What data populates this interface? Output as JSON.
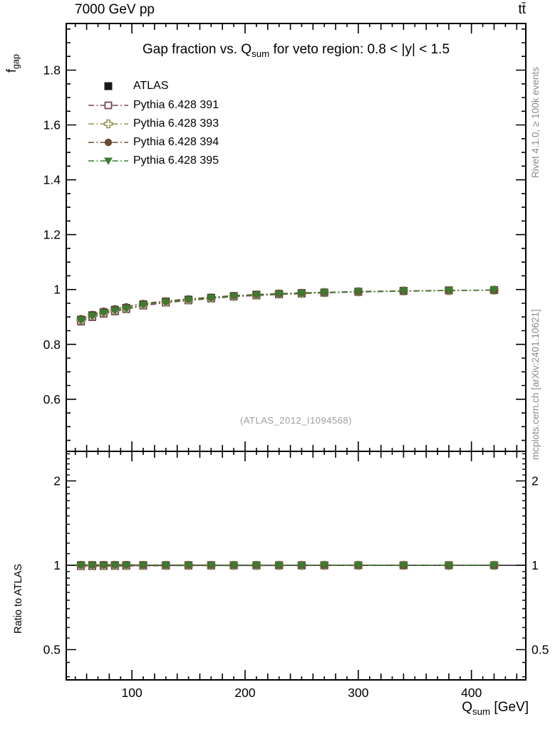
{
  "header": {
    "beam_label": "7000 GeV pp",
    "process_label": "tt̄"
  },
  "side_notes": {
    "right_top": "Rivet 4.1.0, ≥ 100k events",
    "right_bottom": "mcplots.cern.ch [arXiv:2401.10621]"
  },
  "watermark": "(ATLAS_2012_I1094568)",
  "chart_data": {
    "type": "scatter",
    "title": {
      "pre": "Gap fraction vs. Q",
      "sub": "sum",
      "post": " for veto region: 0.8 < |y| < 1.5"
    },
    "xlabel": {
      "pre": "Q",
      "sub": "sum",
      "post": " [GeV]"
    },
    "ylabel": {
      "pre": "f",
      "sub": "gap"
    },
    "ratio_label": "Ratio to ATLAS",
    "legend_position": "top-left",
    "grid": false,
    "x_axis": {
      "lim": [
        42,
        448
      ],
      "major_ticks": [
        100,
        200,
        300,
        400
      ],
      "minor_step": 10
    },
    "y_axis_main": {
      "scale": "linear",
      "lim": [
        0.41,
        1.97
      ],
      "major_ticks": [
        0.6,
        0.8,
        1,
        1.2,
        1.4,
        1.6,
        1.8
      ],
      "minor_step": 0.05
    },
    "y_axis_ratio": {
      "scale": "log",
      "lim": [
        0.39,
        2.55
      ],
      "major_ticks": [
        0.5,
        1,
        2
      ],
      "minor_ticks": [
        0.4,
        0.45,
        0.55,
        0.6,
        0.65,
        0.7,
        0.75,
        0.8,
        0.85,
        0.9,
        0.95,
        1.1,
        1.2,
        1.3,
        1.4,
        1.5,
        1.6,
        1.7,
        1.8,
        1.9,
        2.1,
        2.2,
        2.3,
        2.4,
        2.5
      ]
    },
    "x": [
      55,
      65,
      75,
      85,
      95,
      110,
      130,
      150,
      170,
      190,
      210,
      230,
      250,
      270,
      300,
      340,
      380,
      420
    ],
    "series": [
      {
        "name": "ATLAS",
        "marker": "square",
        "fill": "filled",
        "color": "#191919",
        "line": "none",
        "values": [
          0.89,
          0.906,
          0.917,
          0.926,
          0.933,
          0.946,
          0.956,
          0.963,
          0.97,
          0.976,
          0.981,
          0.984,
          0.987,
          0.989,
          0.992,
          0.995,
          0.997,
          0.998
        ],
        "ratio": [
          1,
          1,
          1,
          1,
          1,
          1,
          1,
          1,
          1,
          1,
          1,
          1,
          1,
          1,
          1,
          1,
          1,
          1
        ]
      },
      {
        "name": "Pythia 6.428 391",
        "marker": "square",
        "fill": "open",
        "color": "#78405a",
        "line": "dashdot",
        "values": [
          0.883,
          0.899,
          0.911,
          0.92,
          0.928,
          0.941,
          0.952,
          0.96,
          0.967,
          0.974,
          0.978,
          0.982,
          0.985,
          0.988,
          0.991,
          0.994,
          0.996,
          0.998
        ],
        "ratio": [
          0.992,
          0.992,
          0.993,
          0.994,
          0.995,
          0.995,
          0.996,
          0.997,
          0.997,
          0.998,
          0.997,
          0.998,
          0.998,
          0.999,
          0.999,
          0.999,
          0.999,
          1.0
        ]
      },
      {
        "name": "Pythia 6.428 393",
        "marker": "cross",
        "fill": "open",
        "color": "#8f8f50",
        "line": "dashdot",
        "values": [
          0.889,
          0.905,
          0.916,
          0.925,
          0.932,
          0.945,
          0.955,
          0.962,
          0.969,
          0.975,
          0.98,
          0.984,
          0.986,
          0.989,
          0.992,
          0.995,
          0.996,
          0.998
        ],
        "ratio": [
          0.999,
          0.999,
          0.999,
          0.999,
          0.999,
          0.999,
          0.999,
          0.999,
          0.999,
          0.999,
          0.999,
          1.0,
          0.999,
          1.0,
          1.0,
          1.0,
          0.999,
          1.0
        ]
      },
      {
        "name": "Pythia 6.428 394",
        "marker": "circle",
        "fill": "filled",
        "color": "#6b4a2f",
        "line": "dashdot",
        "values": [
          0.894,
          0.909,
          0.921,
          0.93,
          0.937,
          0.949,
          0.958,
          0.966,
          0.972,
          0.978,
          0.982,
          0.985,
          0.988,
          0.99,
          0.993,
          0.995,
          0.997,
          0.998
        ],
        "ratio": [
          1.004,
          1.003,
          1.004,
          1.004,
          1.004,
          1.003,
          1.002,
          1.003,
          1.002,
          1.002,
          1.001,
          1.001,
          1.001,
          1.001,
          1.001,
          1.0,
          1.0,
          1.0
        ]
      },
      {
        "name": "Pythia 6.428 395",
        "marker": "triangle-down",
        "fill": "filled",
        "color": "#3a7d32",
        "line": "dashdot",
        "values": [
          0.888,
          0.904,
          0.915,
          0.924,
          0.931,
          0.944,
          0.954,
          0.962,
          0.969,
          0.975,
          0.98,
          0.983,
          0.986,
          0.989,
          0.992,
          0.994,
          0.996,
          0.998
        ],
        "ratio": [
          0.998,
          0.998,
          0.998,
          0.998,
          0.998,
          0.998,
          0.998,
          0.999,
          0.999,
          0.999,
          0.999,
          0.999,
          0.999,
          1.0,
          1.0,
          0.999,
          0.999,
          1.0
        ]
      }
    ]
  }
}
